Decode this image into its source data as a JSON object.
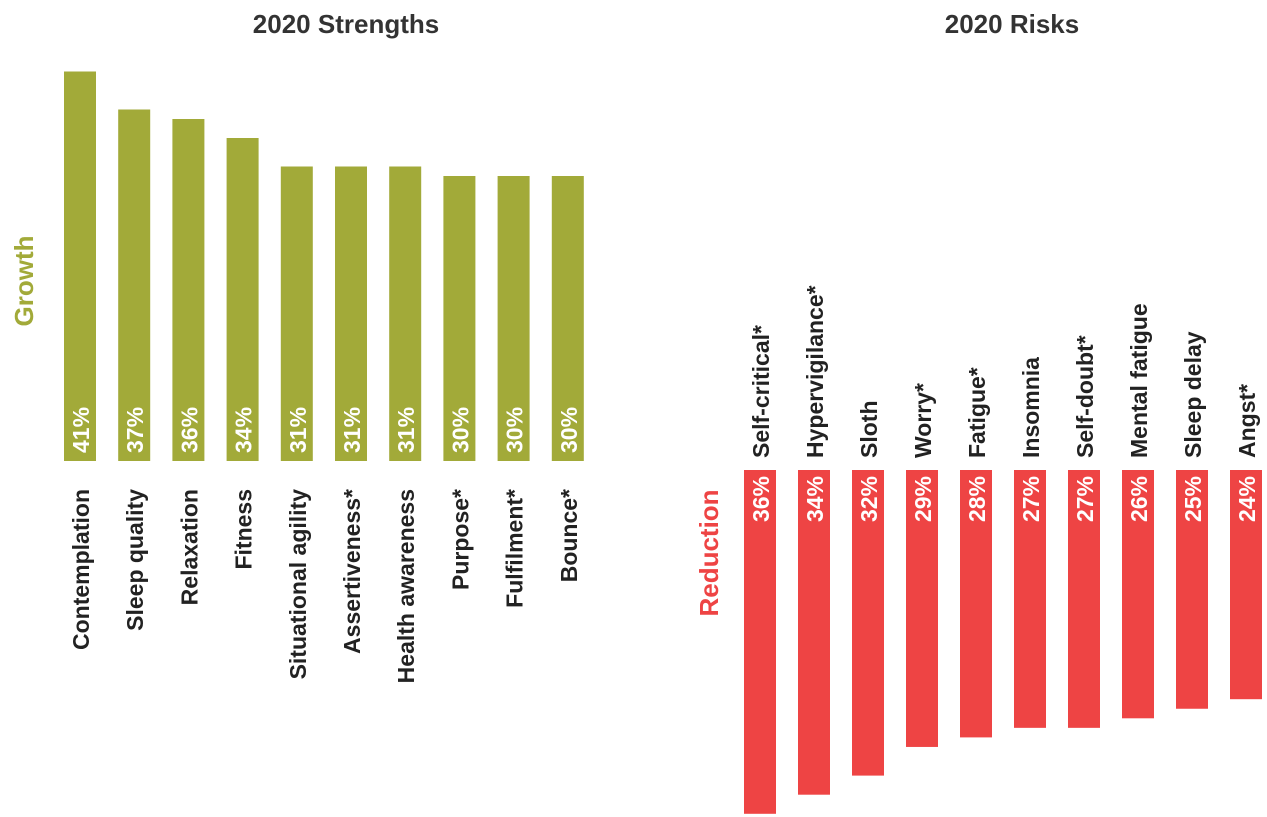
{
  "colors": {
    "growth": "#a2aa39",
    "reduction": "#ee4444",
    "title": "#333333",
    "label": "#222222",
    "value_text": "#ffffff"
  },
  "chart_data": [
    {
      "type": "bar",
      "title": "2020 Strengths",
      "ylabel": "Growth",
      "orientation": "up",
      "categories": [
        "Contemplation",
        "Sleep quality",
        "Relaxation",
        "Fitness",
        "Situational agility",
        "Assertiveness*",
        "Health awareness",
        "Purpose*",
        "Fulfilment*",
        "Bounce*"
      ],
      "values": [
        41,
        37,
        36,
        34,
        31,
        31,
        31,
        30,
        30,
        30
      ],
      "value_labels": [
        "41%",
        "37%",
        "36%",
        "34%",
        "31%",
        "31%",
        "31%",
        "30%",
        "30%",
        "30%"
      ],
      "unit": "%",
      "grid": false,
      "legend": "none"
    },
    {
      "type": "bar",
      "title": "2020 Risks",
      "ylabel": "Reduction",
      "orientation": "down",
      "categories": [
        "Self-critical*",
        "Hypervigilance*",
        "Sloth",
        "Worry*",
        "Fatigue*",
        "Insomnia",
        "Self-doubt*",
        "Mental fatigue",
        "Sleep delay",
        "Angst*"
      ],
      "values": [
        36,
        34,
        32,
        29,
        28,
        27,
        27,
        26,
        25,
        24
      ],
      "value_labels": [
        "36%",
        "34%",
        "32%",
        "29%",
        "28%",
        "27%",
        "27%",
        "26%",
        "25%",
        "24%"
      ],
      "unit": "%",
      "grid": false,
      "legend": "none"
    }
  ]
}
